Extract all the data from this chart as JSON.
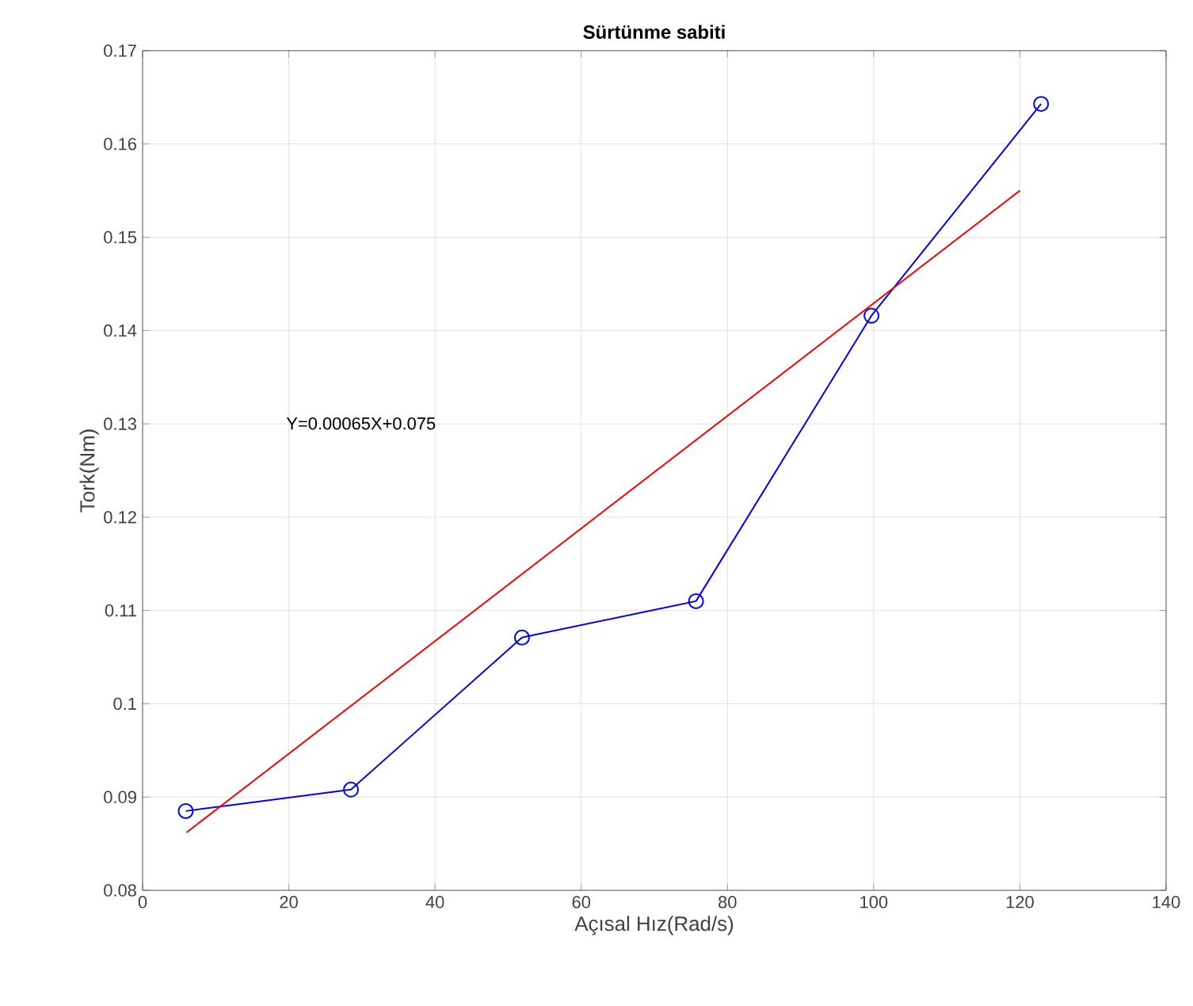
{
  "chart_data": {
    "type": "line",
    "title": "Sürtünme sabiti",
    "xlabel": "Açısal Hız(Rad/s)",
    "ylabel": "Tork(Nm)",
    "annotations": [
      "Y=0.00065X+0.075"
    ],
    "series": [
      {
        "color": "#0000ff",
        "marker": "circle",
        "x": [
          5.9,
          28.5,
          51.9,
          75.7,
          99.7,
          122.9
        ],
        "values": [
          0.0885,
          0.0908,
          0.1071,
          0.111,
          0.1416,
          0.1643
        ]
      },
      {
        "color": "#ff0000",
        "marker": "none",
        "x": [
          6,
          120
        ],
        "values": [
          0.0862,
          0.155
        ]
      }
    ],
    "xlim": [
      0,
      140
    ],
    "ylim": [
      0.08,
      0.17
    ],
    "xticks": [
      0,
      20,
      40,
      60,
      80,
      100,
      120,
      140
    ],
    "yticks": [
      0.08,
      0.09,
      0.1,
      0.11,
      0.12,
      0.13,
      0.14,
      0.15,
      0.16,
      0.17
    ],
    "grid": true
  }
}
